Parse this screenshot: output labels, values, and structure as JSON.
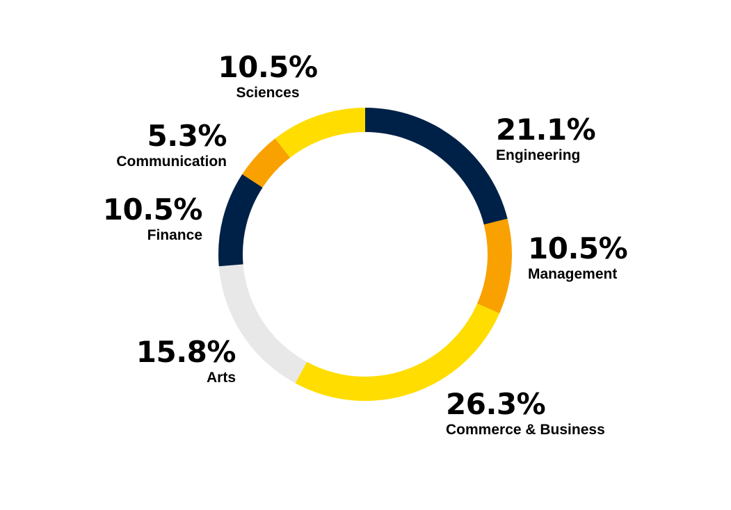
{
  "chart_data": {
    "type": "pie",
    "style": "donut",
    "categories": [
      "Engineering",
      "Management",
      "Commerce & Business",
      "Arts",
      "Finance",
      "Communication",
      "Sciences"
    ],
    "values": [
      21.1,
      10.5,
      26.3,
      15.8,
      10.5,
      5.3,
      10.5
    ],
    "value_labels": [
      "21.1%",
      "10.5%",
      "26.3%",
      "15.8%",
      "10.5%",
      "5.3%",
      "10.5%"
    ],
    "colors": [
      "#002147",
      "#F9A100",
      "#FFDD00",
      "#E8E8E8",
      "#002147",
      "#F9A100",
      "#FFDD00"
    ],
    "start_angle": "top, clockwise",
    "legend": "none"
  }
}
